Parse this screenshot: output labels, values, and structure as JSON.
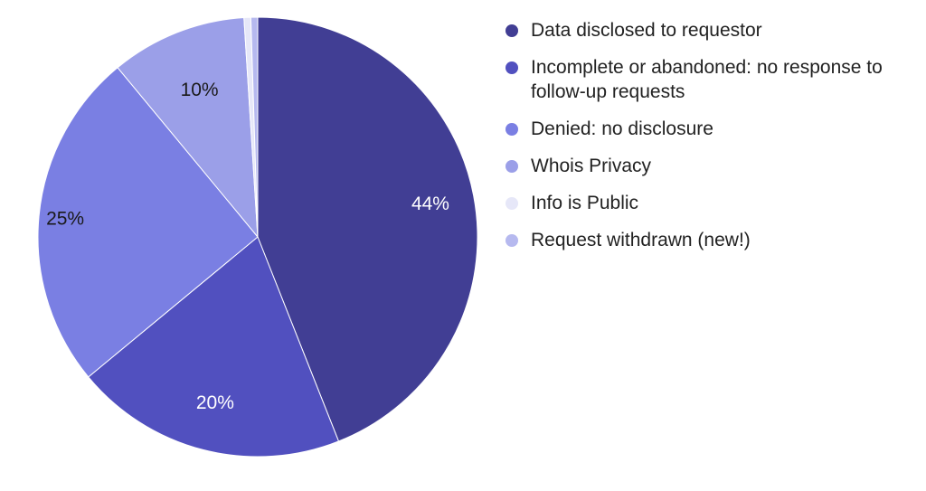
{
  "chart_data": {
    "type": "pie",
    "slices": [
      {
        "label": "Data disclosed to requestor",
        "value": 44,
        "color": "#413e94",
        "data_label": "44%"
      },
      {
        "label": "Incomplete or abandoned: no response to follow-up requests",
        "value": 20,
        "color": "#5150bf",
        "data_label": "20%"
      },
      {
        "label": "Denied: no disclosure",
        "value": 25,
        "color": "#7a7fe3",
        "data_label": "25%"
      },
      {
        "label": "Whois Privacy",
        "value": 10,
        "color": "#9b9fe8",
        "data_label": "10%"
      },
      {
        "label": "Info is Public",
        "value": 0.5,
        "color": "#e6e7f8",
        "data_label": ""
      },
      {
        "label": "Request withdrawn (new!)",
        "value": 0.5,
        "color": "#b6b9ef",
        "data_label": ""
      }
    ],
    "legend_position": "right",
    "start_angle": "top, clockwise"
  }
}
